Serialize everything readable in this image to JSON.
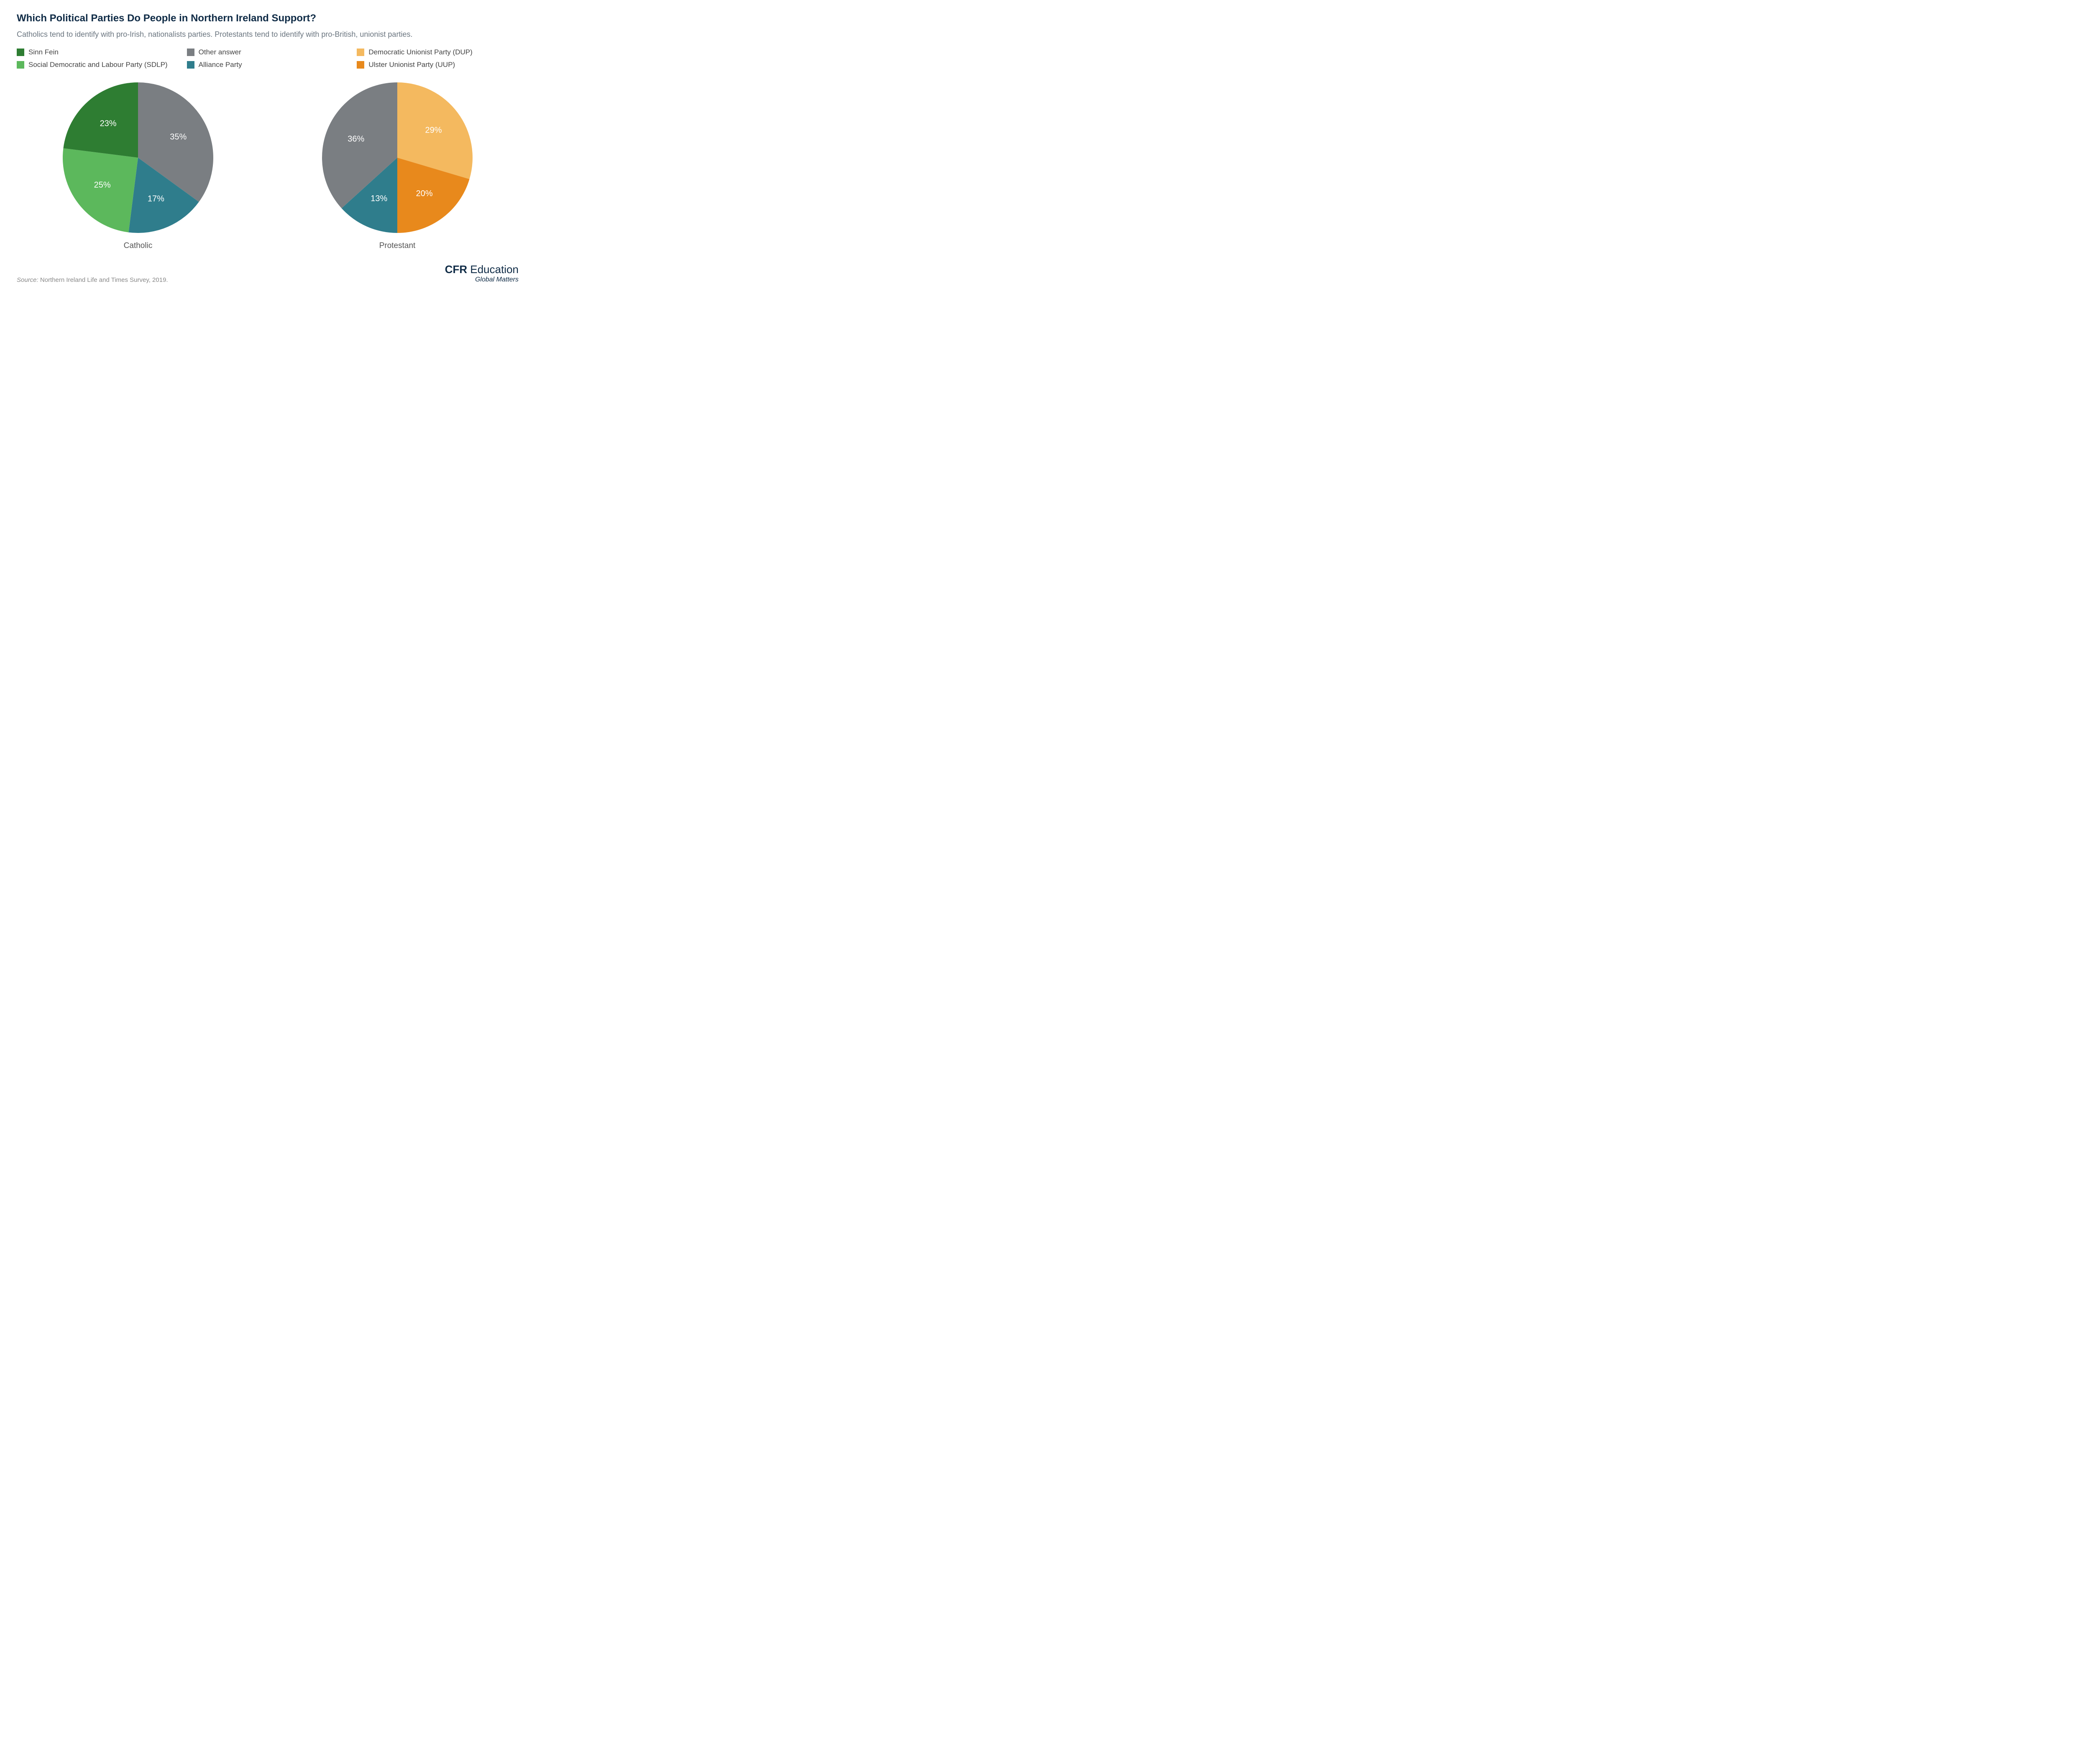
{
  "title": "Which Political Parties Do People in Northern Ireland Support?",
  "subtitle": "Catholics tend to identify with pro-Irish, nationalists parties. Protestants tend to identify with pro-British, unionist parties.",
  "legend": [
    {
      "label": "Sinn Fein",
      "color": "#2e7d32"
    },
    {
      "label": "Other answer",
      "color": "#7a7e82"
    },
    {
      "label": "Democratic Unionist Party (DUP)",
      "color": "#f4b95f"
    },
    {
      "label": "Social Democratic and Labour Party (SDLP)",
      "color": "#5cb85c"
    },
    {
      "label": "Alliance Party",
      "color": "#2f7d8c"
    },
    {
      "label": "Ulster Unionist Party (UUP)",
      "color": "#e8891c"
    }
  ],
  "chart_style": {
    "type": "pie",
    "radius": 180,
    "label_fontsize": 20,
    "label_color": "#ffffff",
    "background_color": "#ffffff",
    "chart_label_fontsize": 19,
    "chart_label_color": "#555555",
    "start_angle_deg": -90,
    "direction": "clockwise"
  },
  "charts": [
    {
      "name": "Catholic",
      "slices": [
        {
          "label": "35%",
          "value": 35,
          "color": "#7a7e82",
          "party": "Other answer"
        },
        {
          "label": "17%",
          "value": 17,
          "color": "#2f7d8c",
          "party": "Alliance Party"
        },
        {
          "label": "25%",
          "value": 25,
          "color": "#5cb85c",
          "party": "Social Democratic and Labour Party (SDLP)"
        },
        {
          "label": "23%",
          "value": 23,
          "color": "#2e7d32",
          "party": "Sinn Fein"
        }
      ]
    },
    {
      "name": "Protestant",
      "slices": [
        {
          "label": "29%",
          "value": 29,
          "color": "#f4b95f",
          "party": "Democratic Unionist Party (DUP)"
        },
        {
          "label": "20%",
          "value": 20,
          "color": "#e8891c",
          "party": "Ulster Unionist Party (UUP)"
        },
        {
          "label": "13%",
          "value": 13,
          "color": "#2f7d8c",
          "party": "Alliance Party"
        },
        {
          "label": "36%",
          "value": 36,
          "color": "#7a7e82",
          "party": "Other answer"
        }
      ]
    }
  ],
  "source": {
    "label": "Source: ",
    "value": "Northern Ireland Life and Times Survey, 2019."
  },
  "brand": {
    "prefix": "CFR",
    "suffix": " Education",
    "tagline": "Global Matters"
  }
}
